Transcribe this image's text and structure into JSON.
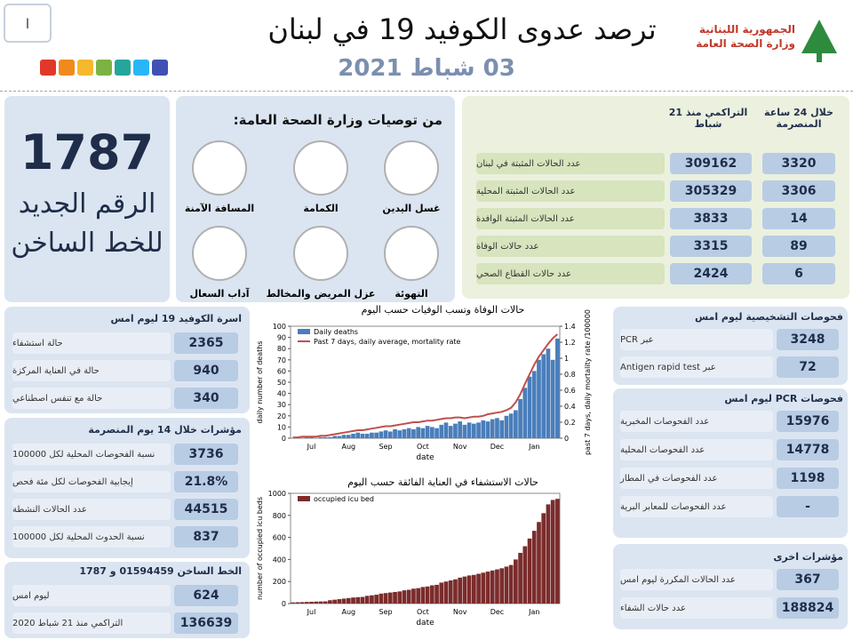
{
  "header": {
    "page_number": "I",
    "title": "ترصد عدوى الكوفيد 19 في لبنان",
    "date": "03 شباط 2021",
    "ministry_line1": "الجمهورية اللبنانية",
    "ministry_line2": "وزارة الصحة العامة"
  },
  "hotline": {
    "number": "1787",
    "text1": "الرقم الجديد",
    "text2": "للخط الساخن"
  },
  "recommendations": {
    "title": "من توصيات وزارة الصحة العامة:",
    "items": [
      "غسل اليدين",
      "الكمامة",
      "المسافة الآمنة",
      "التهوئة",
      "عزل المريض والمخالط",
      "آداب السعال"
    ]
  },
  "summary": {
    "headers": [
      "خلال 24 ساعة المنصرمة",
      "التراكمي منذ 21 شباط"
    ],
    "rows": [
      {
        "label": "عدد الحالات المثبتة في لبنان",
        "day": 3320,
        "cumulative": 309162
      },
      {
        "label": "عدد الحالات المثبتة المحلية",
        "day": 3306,
        "cumulative": 305329
      },
      {
        "label": "عدد الحالات المثبتة الوافدة",
        "day": 14,
        "cumulative": 3833
      },
      {
        "label": "عدد حالات الوفاة",
        "day": 89,
        "cumulative": 3315
      },
      {
        "label": "عدد حالات القطاع الصحي",
        "day": 6,
        "cumulative": 2424
      }
    ]
  },
  "beds": {
    "title": "اسرة الكوفيد 19 ليوم امس",
    "rows": [
      {
        "label": "حالة استشفاء",
        "value": 2365
      },
      {
        "label": "حالة في العناية المركزة",
        "value": 940
      },
      {
        "label": "حالة مع تنفس اصطناعي",
        "value": 340
      }
    ]
  },
  "indicators": {
    "title": "مؤشرات خلال 14 يوم المنصرمة",
    "rows": [
      {
        "label": "نسبة الفحوصات المحلية لكل 100000",
        "value": 3736
      },
      {
        "label": "إيجابية الفحوصات لكل مئة فحص",
        "value": "21.8%"
      },
      {
        "label": "عدد الحالات النشطة",
        "value": 44515
      },
      {
        "label": "نسبة الحدوث المحلية لكل 100000",
        "value": 837
      }
    ]
  },
  "hotline_stats": {
    "title": "الخط الساخن 01594459 و 1787",
    "rows": [
      {
        "label": "ليوم امس",
        "value": 624
      },
      {
        "label": "التراكمي منذ 21 شباط 2020",
        "value": 136639
      }
    ]
  },
  "tests": {
    "title": "فحوصات التشخيصية ليوم امس",
    "rows": [
      {
        "label": "عبر PCR",
        "value": 3248
      },
      {
        "label": "عبر Antigen rapid test",
        "value": 72
      }
    ]
  },
  "pcr": {
    "title": "فحوصات PCR ليوم امس",
    "rows": [
      {
        "label": "عدد الفحوصات المخبرية",
        "value": 15976
      },
      {
        "label": "عدد الفحوصات المحلية",
        "value": 14778
      },
      {
        "label": "عدد الفحوصات في المطار",
        "value": 1198
      },
      {
        "label": "عدد الفحوصات للمعابر البرية",
        "value": "-"
      }
    ]
  },
  "other": {
    "title": "مؤشرات اخرى",
    "rows": [
      {
        "label": "عدد الحالات المكررة ليوم امس",
        "value": 367
      },
      {
        "label": "عدد حالات الشفاء",
        "value": 188824
      }
    ]
  },
  "chart_data": [
    {
      "type": "bar",
      "title": "حالات الوفاة وتسب الوفيات حسب اليوم",
      "x_label": "date",
      "y_label": "daily number of deaths",
      "y2_label": "past 7 days, daily mortality rate /100000",
      "legend": "upper-left",
      "categories": [
        null,
        null,
        null,
        null,
        "Jul",
        null,
        null,
        null,
        null,
        null,
        null,
        null,
        "Aug",
        null,
        null,
        null,
        null,
        null,
        null,
        null,
        "Sep",
        null,
        null,
        null,
        null,
        null,
        null,
        null,
        "Oct",
        null,
        null,
        null,
        null,
        null,
        null,
        null,
        "Nov",
        null,
        null,
        null,
        null,
        null,
        null,
        null,
        "Dec",
        null,
        null,
        null,
        null,
        null,
        null,
        null,
        "Jan",
        null,
        null,
        null,
        null,
        null
      ],
      "ylim": [
        0,
        100
      ],
      "yticks": [
        0,
        10,
        20,
        30,
        40,
        50,
        60,
        70,
        80,
        90,
        100
      ],
      "y2lim": [
        0,
        1.4
      ],
      "y2ticks": [
        0,
        0.2,
        0.4,
        0.6,
        0.8,
        1,
        1.2,
        1.4
      ],
      "series": [
        {
          "name": "Daily deaths",
          "color": "#4a7ebb",
          "kind": "bar",
          "values": [
            0,
            1,
            0,
            1,
            1,
            0,
            1,
            1,
            1,
            2,
            2,
            3,
            3,
            4,
            5,
            4,
            4,
            5,
            5,
            6,
            7,
            6,
            8,
            7,
            8,
            9,
            8,
            10,
            9,
            11,
            10,
            9,
            12,
            14,
            11,
            13,
            15,
            12,
            14,
            13,
            14,
            16,
            15,
            17,
            18,
            16,
            20,
            22,
            25,
            35,
            45,
            55,
            60,
            70,
            75,
            80,
            70,
            89
          ]
        },
        {
          "name": "Past 7 days, daily average, mortality rate",
          "color": "#c0504d",
          "kind": "line",
          "axis": "y2",
          "values": [
            0.01,
            0.01,
            0.02,
            0.02,
            0.02,
            0.02,
            0.03,
            0.03,
            0.04,
            0.05,
            0.06,
            0.07,
            0.08,
            0.09,
            0.1,
            0.1,
            0.11,
            0.12,
            0.13,
            0.14,
            0.15,
            0.15,
            0.16,
            0.17,
            0.18,
            0.19,
            0.2,
            0.2,
            0.21,
            0.22,
            0.22,
            0.23,
            0.24,
            0.25,
            0.25,
            0.26,
            0.26,
            0.25,
            0.26,
            0.27,
            0.27,
            0.28,
            0.3,
            0.31,
            0.32,
            0.33,
            0.35,
            0.38,
            0.45,
            0.55,
            0.68,
            0.8,
            0.92,
            1.02,
            1.1,
            1.18,
            1.25,
            1.3
          ]
        }
      ]
    },
    {
      "type": "bar",
      "title": "حالات الاستشفاء في العناية الفائقة حسب اليوم",
      "x_label": "date",
      "y_label": "number of occupied icu beds",
      "legend": "upper-left",
      "categories": [
        null,
        null,
        null,
        null,
        "Jul",
        null,
        null,
        null,
        null,
        null,
        null,
        null,
        "Aug",
        null,
        null,
        null,
        null,
        null,
        null,
        null,
        "Sep",
        null,
        null,
        null,
        null,
        null,
        null,
        null,
        "Oct",
        null,
        null,
        null,
        null,
        null,
        null,
        null,
        "Nov",
        null,
        null,
        null,
        null,
        null,
        null,
        null,
        "Dec",
        null,
        null,
        null,
        null,
        null,
        null,
        null,
        "Jan",
        null,
        null,
        null,
        null,
        null
      ],
      "ylim": [
        0,
        1000
      ],
      "yticks": [
        0,
        200,
        400,
        600,
        800,
        1000
      ],
      "series": [
        {
          "name": "occupied icu bed",
          "color": "#7b2c2c",
          "kind": "bar",
          "values": [
            10,
            12,
            13,
            15,
            16,
            18,
            19,
            20,
            30,
            35,
            40,
            45,
            50,
            55,
            58,
            60,
            70,
            75,
            80,
            90,
            95,
            100,
            105,
            110,
            120,
            125,
            135,
            140,
            150,
            155,
            165,
            170,
            190,
            200,
            210,
            220,
            235,
            245,
            255,
            260,
            270,
            280,
            290,
            300,
            310,
            320,
            335,
            350,
            400,
            460,
            520,
            590,
            660,
            740,
            820,
            900,
            940,
            950
          ]
        }
      ]
    }
  ]
}
